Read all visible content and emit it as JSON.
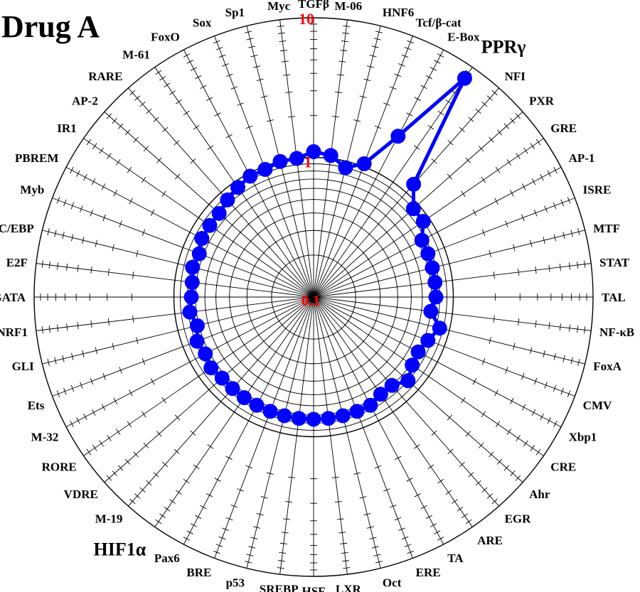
{
  "title": "Drug A",
  "chart_data": {
    "type": "radar",
    "title": "Drug A",
    "scale": "log",
    "rlim": [
      0.1,
      10
    ],
    "ring_labels": [
      "0.1",
      "1",
      "10"
    ],
    "ring_label_color": "#ff0000",
    "series_color": "#0000ff",
    "grid": true,
    "categories": [
      "TGFβ",
      "M-06",
      "HNF6",
      "Tcf/β-cat",
      "E-Box",
      "PPRγ",
      "NFI",
      "PXR",
      "GRE",
      "AP-1",
      "ISRE",
      "MTF",
      "STAT",
      "TAL",
      "NF-κB",
      "FoxA",
      "CMV",
      "Xbp1",
      "CRE",
      "Ahr",
      "EGR",
      "ARE",
      "TA",
      "ERE",
      "Oct",
      "LXR",
      "HSF",
      "SREBP",
      "p53",
      "BRE",
      "Pax6",
      "HIF1α",
      "M-19",
      "VDRE",
      "RORE",
      "M-32",
      "Ets",
      "GLI",
      "NRF1",
      "GATA",
      "E2F",
      "C/EBP",
      "Myb",
      "PBREM",
      "IR1",
      "AP-2",
      "RARE",
      "M-61",
      "FoxO",
      "Sox",
      "Sp1",
      "Myc"
    ],
    "highlight": {
      "PPRγ": "#22c81e",
      "HIF1α": "#ff0000"
    },
    "values": [
      1.1,
      1.05,
      0.9,
      1.05,
      2.0,
      8.0,
      1.2,
      0.9,
      0.9,
      0.75,
      0.75,
      0.75,
      0.75,
      0.75,
      0.7,
      0.85,
      0.75,
      0.7,
      0.72,
      0.8,
      0.7,
      0.7,
      0.75,
      0.75,
      0.75,
      0.75,
      0.75,
      0.75,
      0.75,
      0.75,
      0.75,
      0.75,
      0.75,
      0.75,
      0.78,
      0.75,
      0.78,
      0.72,
      0.78,
      0.75,
      0.75,
      0.78,
      0.75,
      0.8,
      0.8,
      0.8,
      0.85,
      0.9,
      0.95,
      0.95,
      1.0,
      1.0
    ]
  }
}
